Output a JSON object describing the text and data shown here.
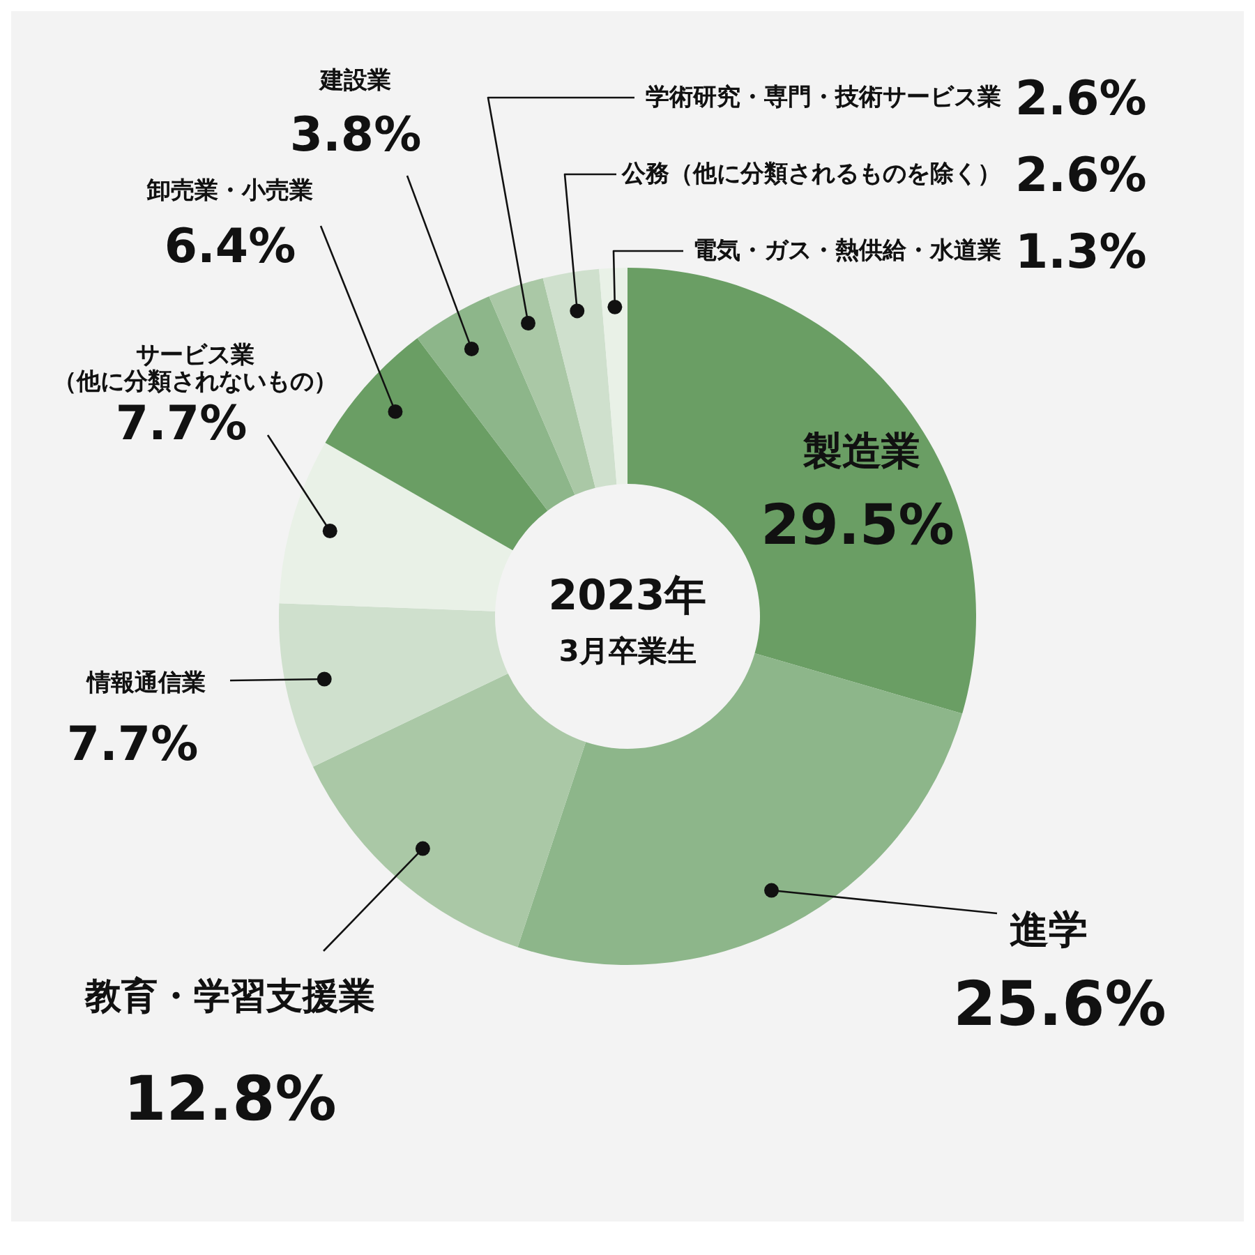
{
  "chart_data": {
    "type": "donut",
    "title": "2023年",
    "subtitle": "3月卒業生",
    "categories": [
      "製造業",
      "進学",
      "教育・学習支援業",
      "情報通信業",
      "サービス業（他に分類されないもの）",
      "卸売業・小売業",
      "建設業",
      "学術研究・専門・技術サービス業",
      "公務（他に分類されるものを除く）",
      "電気・ガス・熱供給・水道業"
    ],
    "values": [
      29.5,
      25.6,
      12.8,
      7.7,
      7.7,
      6.4,
      3.8,
      2.6,
      2.6,
      1.3
    ],
    "value_labels": [
      "29.5%",
      "25.6%",
      "12.8%",
      "7.7%",
      "7.7%",
      "6.4%",
      "3.8%",
      "2.6%",
      "2.6%",
      "1.3%"
    ],
    "colors": [
      "#6a9e64",
      "#8db68a",
      "#aac8a6",
      "#cfe0cd",
      "#e9f1e7",
      "#6a9e64",
      "#8db68a",
      "#aac8a6",
      "#cfe0cd",
      "#e9f1e7"
    ]
  }
}
